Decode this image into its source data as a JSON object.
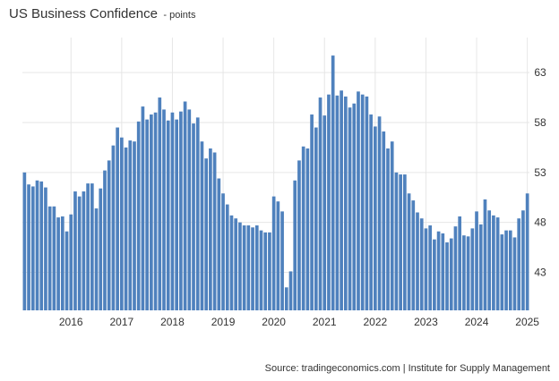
{
  "colors": {
    "bar": "#4f81bd",
    "grid": "#e6e6e6"
  },
  "source": "Source: tradingeconomics.com | Institute for Supply Management",
  "chart_data": {
    "type": "bar",
    "title": "US Business Confidence",
    "subtitle": "- points",
    "xlabel": "",
    "ylabel": "",
    "ylim": [
      39.2,
      66.5
    ],
    "grid": true,
    "legend": "none",
    "x_ticks": [
      "2016",
      "2017",
      "2018",
      "2019",
      "2020",
      "2021",
      "2022",
      "2023",
      "2024",
      "2025"
    ],
    "y_ticks": [
      43,
      48,
      53,
      58,
      63
    ],
    "categories": [
      "2015-02",
      "2015-03",
      "2015-04",
      "2015-05",
      "2015-06",
      "2015-07",
      "2015-08",
      "2015-09",
      "2015-10",
      "2015-11",
      "2015-12",
      "2016-01",
      "2016-02",
      "2016-03",
      "2016-04",
      "2016-05",
      "2016-06",
      "2016-07",
      "2016-08",
      "2016-09",
      "2016-10",
      "2016-11",
      "2016-12",
      "2017-01",
      "2017-02",
      "2017-03",
      "2017-04",
      "2017-05",
      "2017-06",
      "2017-07",
      "2017-08",
      "2017-09",
      "2017-10",
      "2017-11",
      "2017-12",
      "2018-01",
      "2018-02",
      "2018-03",
      "2018-04",
      "2018-05",
      "2018-06",
      "2018-07",
      "2018-08",
      "2018-09",
      "2018-10",
      "2018-11",
      "2018-12",
      "2019-01",
      "2019-02",
      "2019-03",
      "2019-04",
      "2019-05",
      "2019-06",
      "2019-07",
      "2019-08",
      "2019-09",
      "2019-10",
      "2019-11",
      "2019-12",
      "2020-01",
      "2020-02",
      "2020-03",
      "2020-04",
      "2020-05",
      "2020-06",
      "2020-07",
      "2020-08",
      "2020-09",
      "2020-10",
      "2020-11",
      "2020-12",
      "2021-01",
      "2021-02",
      "2021-03",
      "2021-04",
      "2021-05",
      "2021-06",
      "2021-07",
      "2021-08",
      "2021-09",
      "2021-10",
      "2021-11",
      "2021-12",
      "2022-01",
      "2022-02",
      "2022-03",
      "2022-04",
      "2022-05",
      "2022-06",
      "2022-07",
      "2022-08",
      "2022-09",
      "2022-10",
      "2022-11",
      "2022-12",
      "2023-01",
      "2023-02",
      "2023-03",
      "2023-04",
      "2023-05",
      "2023-06",
      "2023-07",
      "2023-08",
      "2023-09",
      "2023-10",
      "2023-11",
      "2023-12",
      "2024-01",
      "2024-02",
      "2024-03",
      "2024-04",
      "2024-05",
      "2024-06",
      "2024-07",
      "2024-08",
      "2024-09",
      "2024-10",
      "2024-11",
      "2024-12",
      "2025-01"
    ],
    "values": [
      53.0,
      51.8,
      51.6,
      52.2,
      52.1,
      51.5,
      49.6,
      49.6,
      48.5,
      48.6,
      47.1,
      48.8,
      51.1,
      50.6,
      51.1,
      51.9,
      51.9,
      49.4,
      51.4,
      53.2,
      54.2,
      55.7,
      57.5,
      56.5,
      55.5,
      56.2,
      56.1,
      58.1,
      59.6,
      58.3,
      58.8,
      59.0,
      60.5,
      59.3,
      58.2,
      59.0,
      58.3,
      59.1,
      60.1,
      59.3,
      57.9,
      58.5,
      56.1,
      54.4,
      55.4,
      55.0,
      52.4,
      50.9,
      49.8,
      48.7,
      48.4,
      48.0,
      47.7,
      47.7,
      47.5,
      47.7,
      47.2,
      47.0,
      47.0,
      50.6,
      50.1,
      49.1,
      41.5,
      43.1,
      52.2,
      54.2,
      55.6,
      55.4,
      58.8,
      57.5,
      60.5,
      58.7,
      60.8,
      64.7,
      60.7,
      61.2,
      60.6,
      59.5,
      59.9,
      61.1,
      60.8,
      60.6,
      58.8,
      57.6,
      58.6,
      57.1,
      55.4,
      56.1,
      53.0,
      52.8,
      52.8,
      50.9,
      50.2,
      49.0,
      48.4,
      47.4,
      47.7,
      46.3,
      47.1,
      46.9,
      46.0,
      46.4,
      47.6,
      48.6,
      46.7,
      46.6,
      47.4,
      49.1,
      47.8,
      50.3,
      49.2,
      48.7,
      48.5,
      46.8,
      47.2,
      47.2,
      46.5,
      48.4,
      49.2,
      50.9
    ]
  }
}
